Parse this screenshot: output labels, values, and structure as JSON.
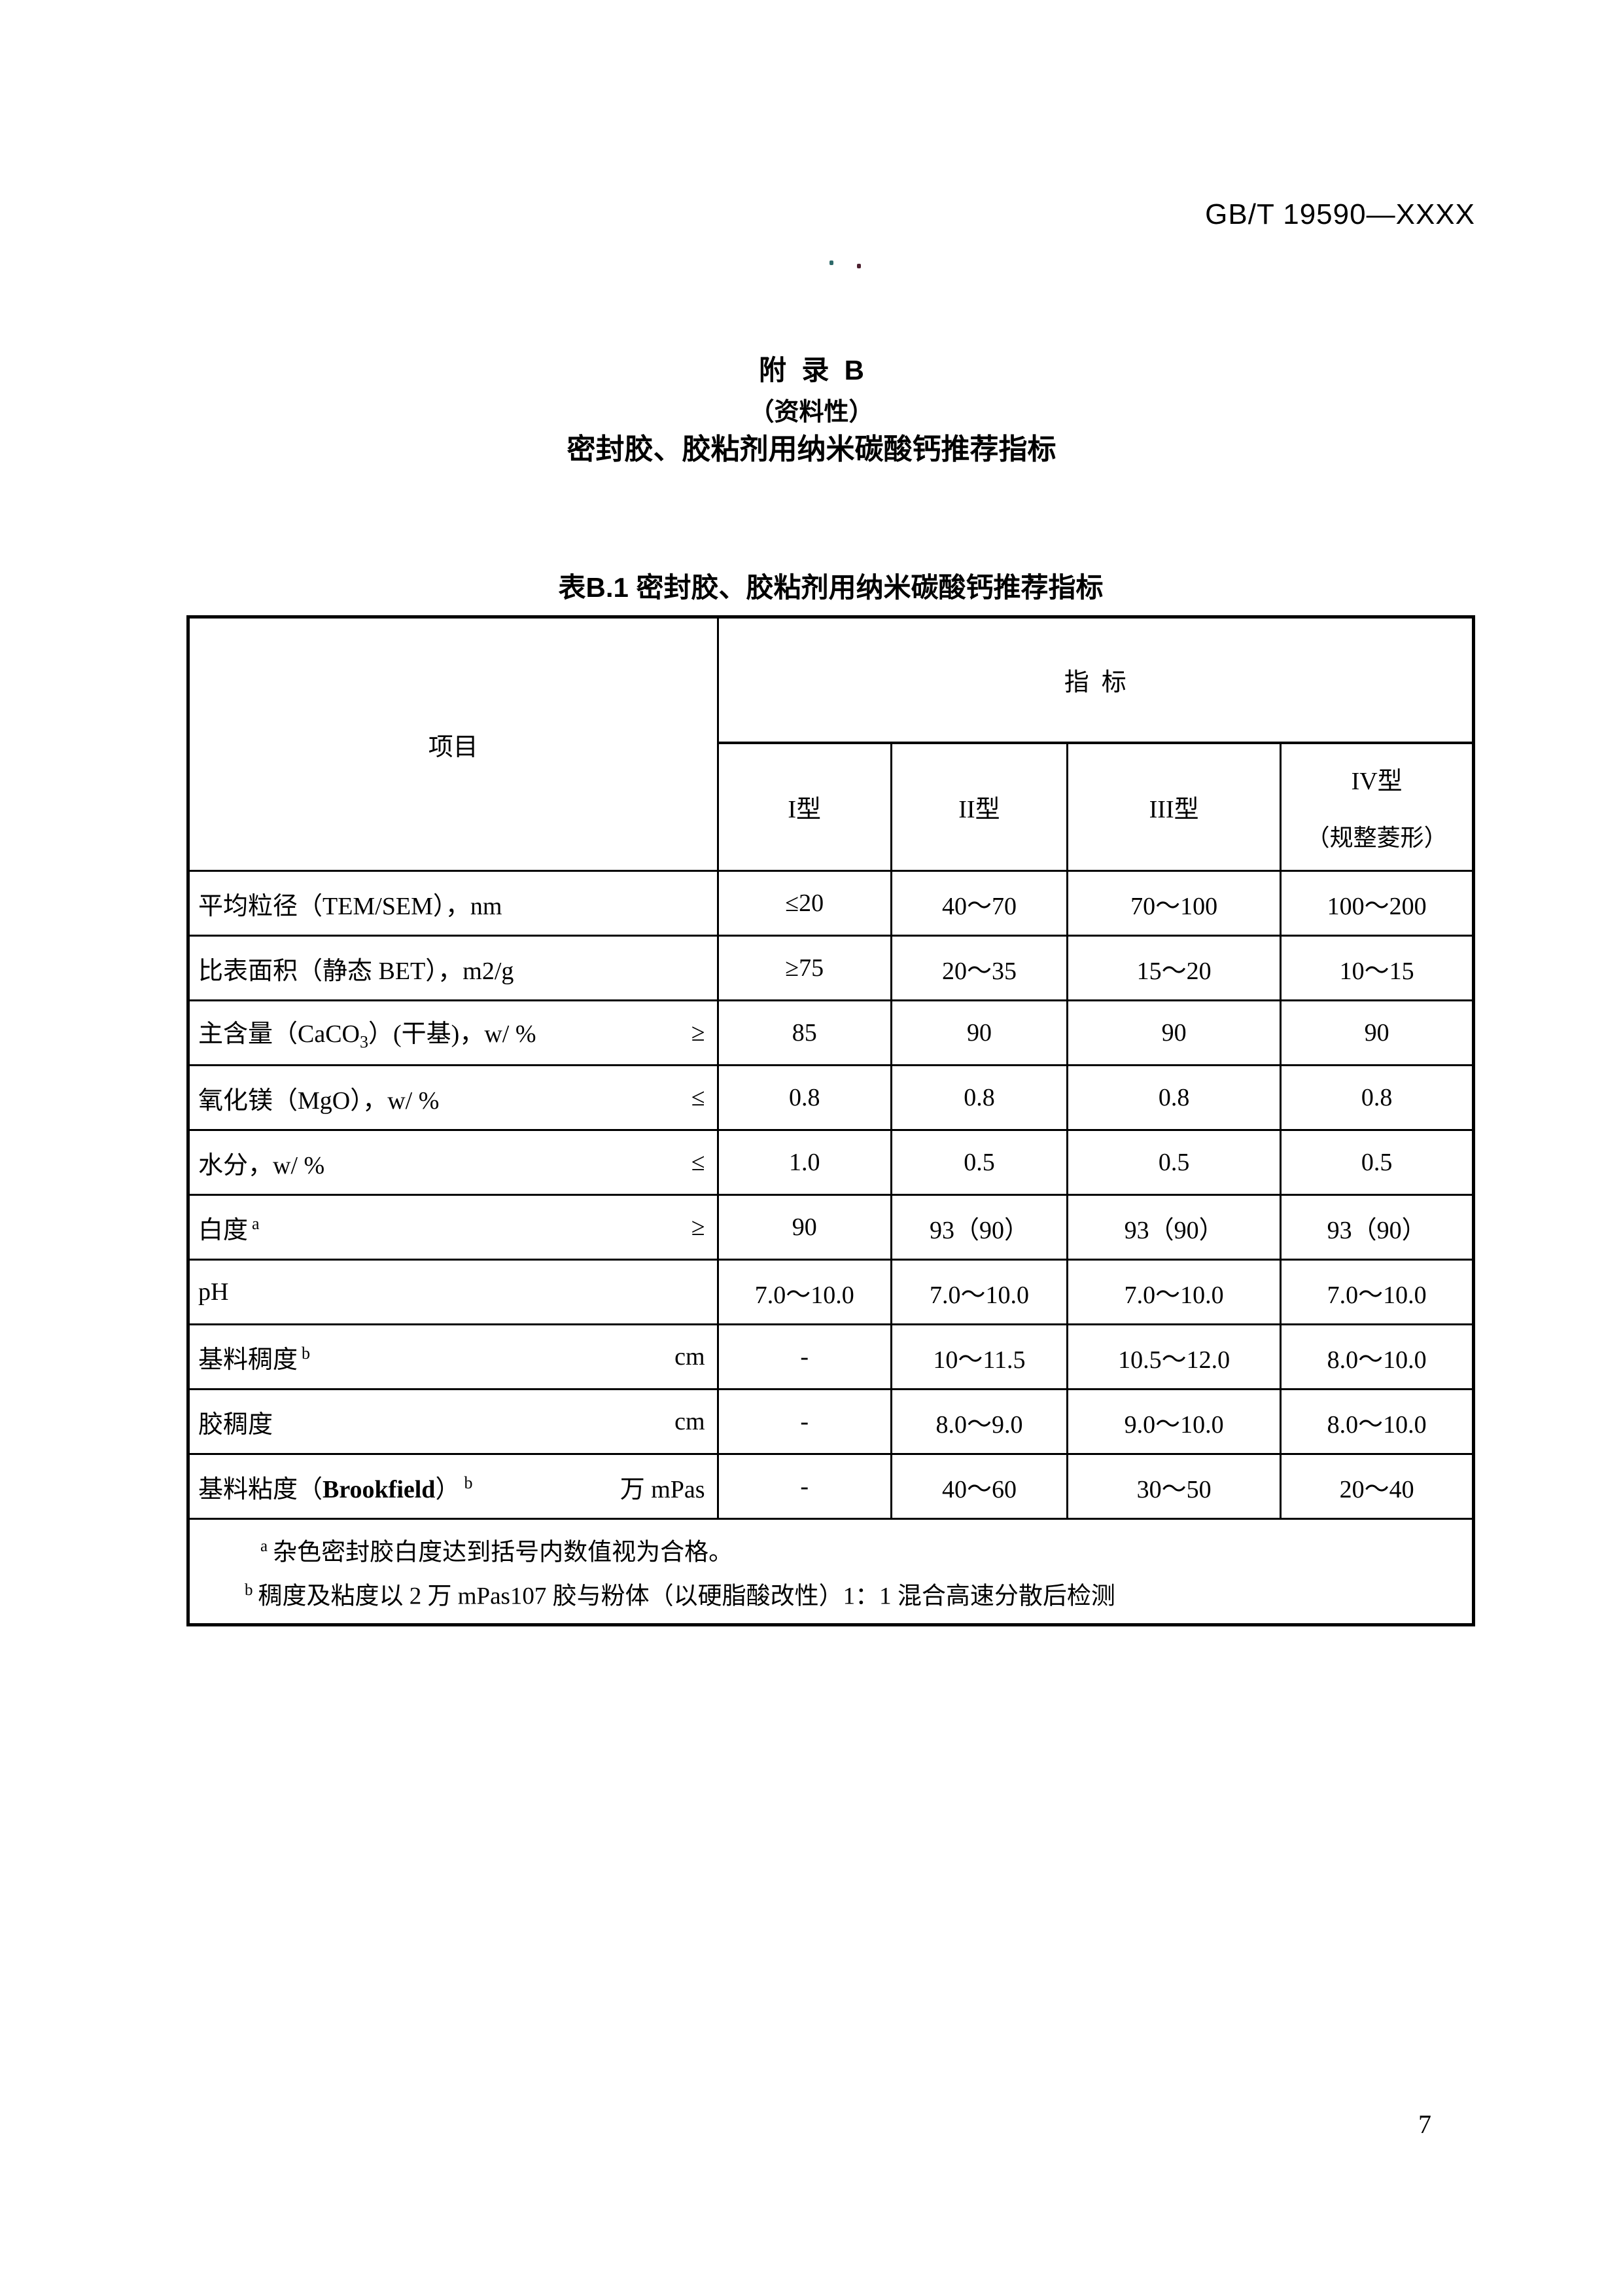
{
  "header": {
    "doc_number": "GB/T 19590—XXXX"
  },
  "artifacts": {
    "dot_colors": [
      "#2f6a6a",
      "#4d2130"
    ]
  },
  "appendix": {
    "title_line1": "附  录  B",
    "title_line2": "（资料性）",
    "title_line3": "密封胶、胶粘剂用纳米碳酸钙推荐指标"
  },
  "table": {
    "caption": "表B.1 密封胶、胶粘剂用纳米碳酸钙推荐指标",
    "header": {
      "item_col": "项目",
      "indicator_group": "指  标",
      "types": [
        {
          "line1": "I型",
          "line2": ""
        },
        {
          "line1": "II型",
          "line2": ""
        },
        {
          "line1": "III型",
          "line2": ""
        },
        {
          "line1": "IV型",
          "line2": "（规整菱形）"
        }
      ]
    },
    "rows": [
      {
        "label": "平均粒径（TEM/SEM），nm",
        "sub": "",
        "bold": "",
        "label2": "",
        "sup": "",
        "unit": "",
        "values": [
          "≤20",
          "40～70",
          "70～100",
          "100～200"
        ]
      },
      {
        "label": "比表面积（静态 BET），m2/g",
        "sub": "",
        "bold": "",
        "label2": "",
        "sup": "",
        "unit": "",
        "values": [
          "≥75",
          "20～35",
          "15～20",
          "10～15"
        ]
      },
      {
        "label": "主含量（CaCO",
        "sub": "3",
        "bold": "",
        "label2": "）(干基)，w/ %",
        "sup": "",
        "unit": "≥",
        "values": [
          "85",
          "90",
          "90",
          "90"
        ]
      },
      {
        "label": "氧化镁（MgO），w/ %",
        "sub": "",
        "bold": "",
        "label2": "",
        "sup": "",
        "unit": "≤",
        "values": [
          "0.8",
          "0.8",
          "0.8",
          "0.8"
        ]
      },
      {
        "label": "水分，w/ %",
        "sub": "",
        "bold": "",
        "label2": "",
        "sup": "",
        "unit": "≤",
        "values": [
          "1.0",
          "0.5",
          "0.5",
          "0.5"
        ]
      },
      {
        "label": "白度",
        "sub": "",
        "bold": "",
        "label2": "",
        "sup": "a",
        "unit": "≥",
        "values": [
          "90",
          "93（90）",
          "93（90）",
          "93（90）"
        ]
      },
      {
        "label": "pH",
        "sub": "",
        "bold": "",
        "label2": "",
        "sup": "",
        "unit": "",
        "values": [
          "7.0～10.0",
          "7.0～10.0",
          "7.0～10.0",
          "7.0～10.0"
        ]
      },
      {
        "label": "基料稠度",
        "sub": "",
        "bold": "",
        "label2": "",
        "sup": "b",
        "unit": "cm",
        "values": [
          "-",
          "10～11.5",
          "10.5～12.0",
          "8.0～10.0"
        ]
      },
      {
        "label": "胶稠度",
        "sub": "",
        "bold": "",
        "label2": "",
        "sup": "",
        "unit": "cm",
        "values": [
          "-",
          "8.0～9.0",
          "9.0～10.0",
          "8.0～10.0"
        ]
      },
      {
        "label": "基料粘度（",
        "sub": "",
        "bold": "Brookfield",
        "label2": "）",
        "sup": "b",
        "unit": "万 mPas",
        "values": [
          "-",
          "40～60",
          "30～50",
          "20～40"
        ]
      }
    ],
    "footnotes": [
      {
        "marker": "a",
        "text": "杂色密封胶白度达到括号内数值视为合格。"
      },
      {
        "marker": "b",
        "text": "稠度及粘度以 2 万 mPas107 胶与粉体（以硬脂酸改性）1：1 混合高速分散后检测"
      }
    ]
  },
  "footer": {
    "page_number": "7"
  }
}
